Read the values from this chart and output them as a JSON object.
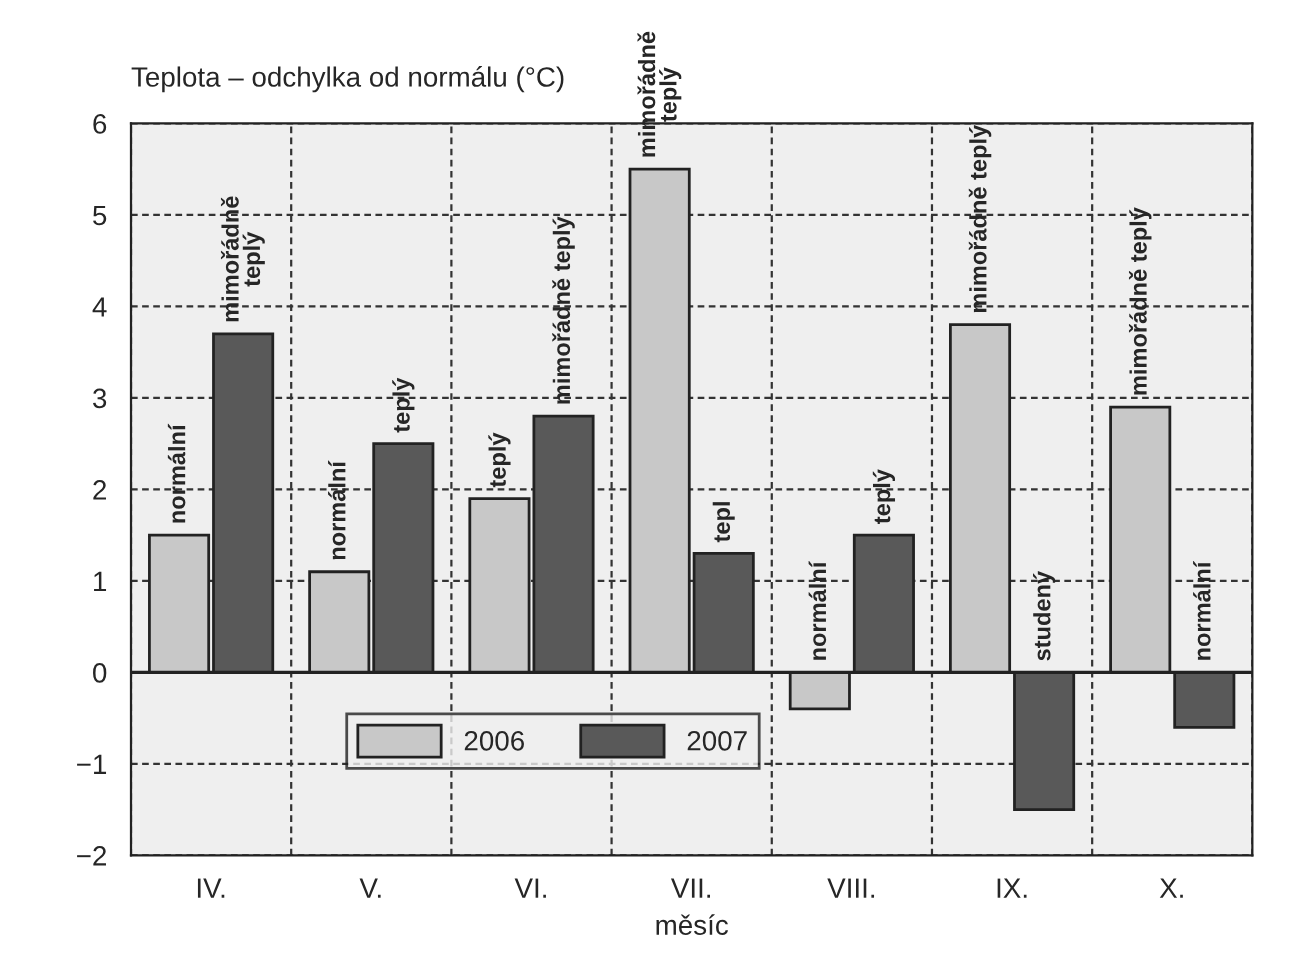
{
  "chart_data": {
    "type": "bar",
    "ylabel": "Teplota – odchylka od normálu (°C)",
    "xlabel": "měsíc",
    "categories": [
      "IV.",
      "V.",
      "VI.",
      "VII.",
      "VIII.",
      "IX.",
      "X."
    ],
    "series": [
      {
        "name": "2006",
        "color": "#c8c8c8",
        "values": [
          1.5,
          1.1,
          1.9,
          5.5,
          -0.4,
          3.8,
          2.9
        ],
        "value_labels": [
          "normální",
          "normální",
          "teplý",
          "mimořádně\nteplý",
          "normální",
          "mimořádně teplý",
          "mimořádně teplý"
        ]
      },
      {
        "name": "2007",
        "color": "#595959",
        "values": [
          3.7,
          2.5,
          2.8,
          1.3,
          1.5,
          -1.5,
          -0.6
        ],
        "value_labels": [
          "mimořádně\nteplý",
          "teplý",
          "mimořádně teplý",
          "tepl",
          "teplý",
          "studený",
          "normální"
        ]
      }
    ],
    "ylim": [
      -2,
      6
    ],
    "yticks": [
      -2,
      -1,
      0,
      1,
      2,
      3,
      4,
      5,
      6
    ],
    "grid": true,
    "legend": "bottom left"
  }
}
